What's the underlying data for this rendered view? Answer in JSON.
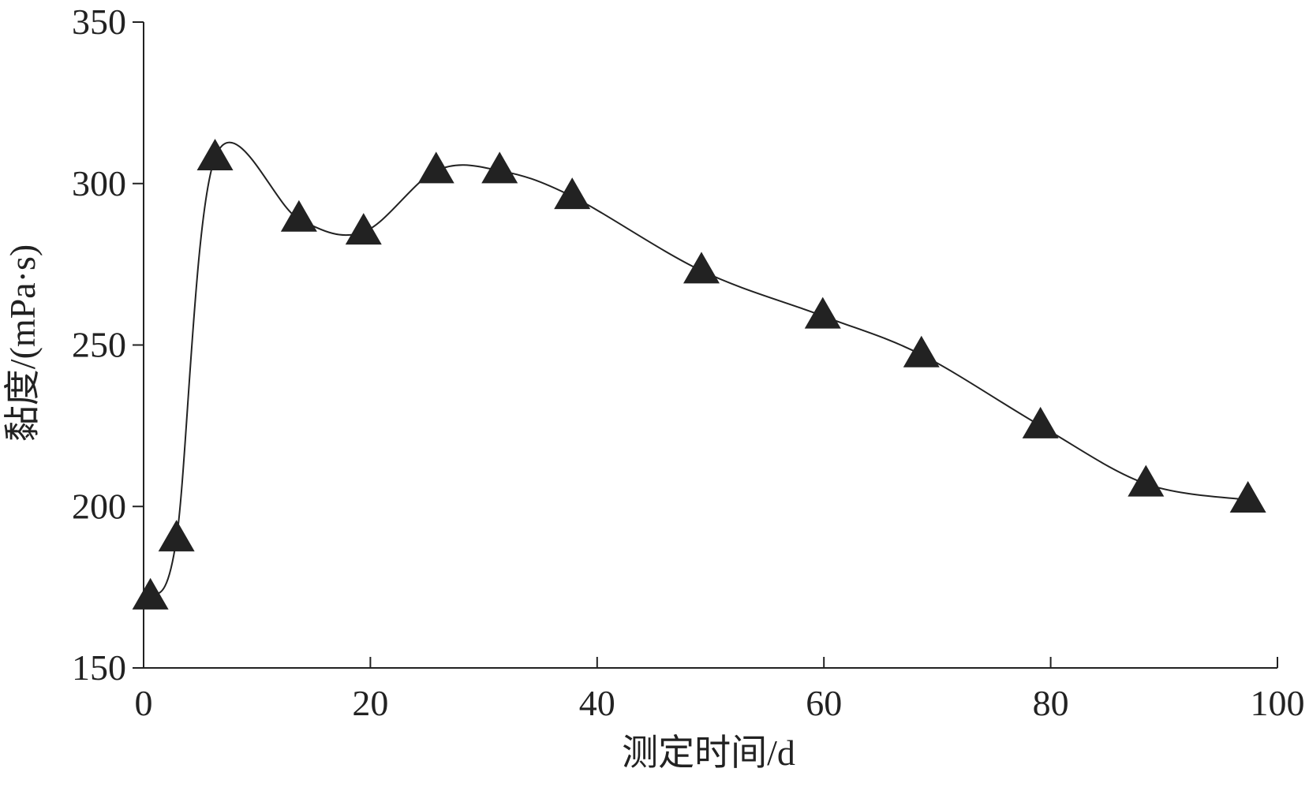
{
  "chart_data": {
    "type": "line",
    "x_label": "测定时间/d",
    "y_label": "黏度/(mPa·s)",
    "series": [
      {
        "name": "黏度",
        "color": "#222222",
        "marker": "triangle",
        "x": [
          0.6,
          2.9,
          6.3,
          13.7,
          19.4,
          25.8,
          31.4,
          37.8,
          49.2,
          59.9,
          68.6,
          79.1,
          88.4,
          97.4
        ],
        "values": [
          172,
          190,
          308,
          289,
          285,
          304,
          304,
          296,
          273,
          259,
          247,
          225,
          207,
          202
        ]
      }
    ],
    "xlim": [
      0,
      100
    ],
    "xticks": [
      0,
      20,
      40,
      60,
      80,
      100
    ],
    "ylim": [
      150,
      350
    ],
    "yticks": [
      150,
      200,
      250,
      300,
      350
    ],
    "grid": false
  }
}
